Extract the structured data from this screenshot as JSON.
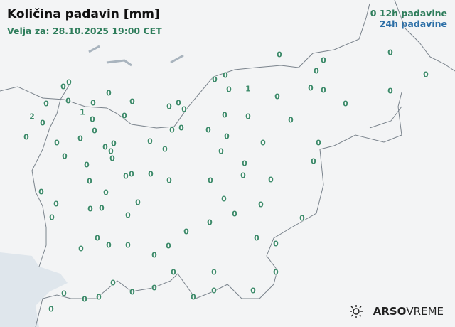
{
  "header": {
    "title": "Količina padavin [mm]",
    "valid": "Velja za: 28.10.2025 19:00 CET"
  },
  "legend": {
    "marker": "0",
    "h12": "12h padavine",
    "h24": "24h padavine",
    "color_12h": "#2e7d5b",
    "color_24h": "#2b6ea6"
  },
  "stations": [
    "0",
    "0",
    "0",
    "0",
    "0",
    "0",
    "0",
    "0",
    "1",
    "0",
    "0",
    "0",
    "0",
    "0",
    "0",
    "0",
    "0",
    "0",
    "0",
    "0",
    "0",
    "0",
    "0",
    "0",
    "1",
    "2",
    "0",
    "0",
    "0",
    "0",
    "0",
    "0",
    "0",
    "0",
    "0",
    "0",
    "0",
    "0",
    "0",
    "0",
    "0",
    "0",
    "0",
    "0",
    "0",
    "0",
    "0",
    "0",
    "0",
    "0",
    "0",
    "0",
    "0",
    "0",
    "0",
    "0",
    "0",
    "0",
    "0",
    "0",
    "0",
    "0",
    "0",
    "0",
    "0",
    "0",
    "0",
    "0",
    "0",
    "0",
    "0",
    "0",
    "0",
    "0",
    "0",
    "0",
    "0",
    "0",
    "0",
    "0",
    "0",
    "0",
    "0",
    "0",
    "0",
    "0",
    "0",
    "0",
    "0",
    "0",
    "0",
    "0",
    "0",
    "0",
    "0",
    "0",
    "0",
    "0",
    "0",
    "0"
  ],
  "logo": {
    "brand": "ARSO",
    "product": "VREME",
    "icon": "sun-rain-icon"
  }
}
